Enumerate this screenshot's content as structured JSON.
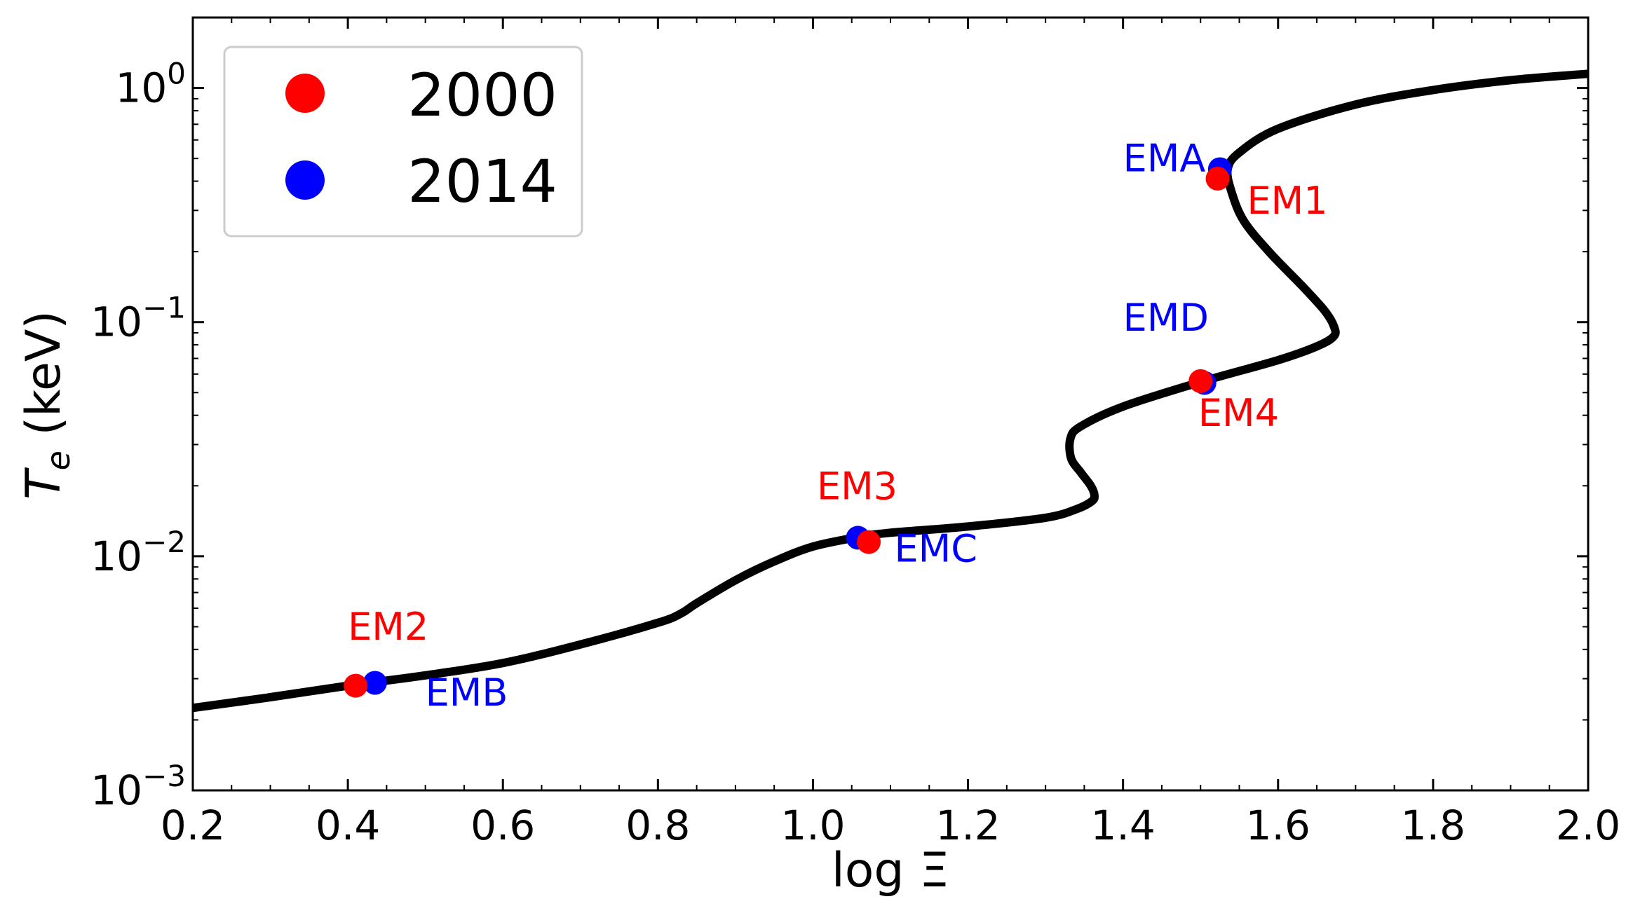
{
  "chart_data": {
    "type": "line",
    "title": "",
    "xlabel": "log Ξ",
    "ylabel_main": "T",
    "ylabel_sub": "e",
    "ylabel_unit": " (keV)",
    "xlim": [
      0.2,
      2.0
    ],
    "ylim": [
      0.001,
      2.0
    ],
    "yscale": "log",
    "x_ticks": [
      {
        "value": 0.2,
        "label": "0.2"
      },
      {
        "value": 0.4,
        "label": "0.4"
      },
      {
        "value": 0.6,
        "label": "0.6"
      },
      {
        "value": 0.8,
        "label": "0.8"
      },
      {
        "value": 1.0,
        "label": "1.0"
      },
      {
        "value": 1.2,
        "label": "1.2"
      },
      {
        "value": 1.4,
        "label": "1.4"
      },
      {
        "value": 1.6,
        "label": "1.6"
      },
      {
        "value": 1.8,
        "label": "1.8"
      },
      {
        "value": 2.0,
        "label": "2.0"
      }
    ],
    "y_ticks": [
      {
        "value": 0.001,
        "base": "10",
        "exp": "−3"
      },
      {
        "value": 0.01,
        "base": "10",
        "exp": "−2"
      },
      {
        "value": 0.1,
        "base": "10",
        "exp": "−1"
      },
      {
        "value": 1.0,
        "base": "10",
        "exp": "0"
      }
    ],
    "curve": {
      "name": "S-curve",
      "color": "#000000",
      "x": [
        0.2,
        0.3,
        0.4,
        0.5,
        0.6,
        0.7,
        0.8,
        0.83,
        0.85,
        0.9,
        0.95,
        1.0,
        1.06,
        1.1,
        1.2,
        1.3,
        1.34,
        1.36,
        1.363,
        1.358,
        1.345,
        1.333,
        1.332,
        1.345,
        1.4,
        1.5,
        1.6,
        1.65,
        1.672,
        1.672,
        1.66,
        1.63,
        1.59,
        1.556,
        1.54,
        1.535,
        1.55,
        1.6,
        1.7,
        1.8,
        1.9,
        2.0
      ],
      "y": [
        0.00225,
        0.0025,
        0.0028,
        0.0031,
        0.0035,
        0.0042,
        0.0052,
        0.0057,
        0.0063,
        0.0079,
        0.0095,
        0.011,
        0.0121,
        0.0126,
        0.0134,
        0.0146,
        0.0159,
        0.0172,
        0.0183,
        0.0201,
        0.0229,
        0.0262,
        0.0317,
        0.0358,
        0.0436,
        0.0555,
        0.0688,
        0.0788,
        0.087,
        0.096,
        0.112,
        0.144,
        0.197,
        0.27,
        0.36,
        0.45,
        0.53,
        0.67,
        0.85,
        0.98,
        1.08,
        1.15
      ]
    },
    "series": [
      {
        "name": "2000",
        "color": "#ff0000",
        "points": [
          {
            "label": "EM1",
            "x": 1.522,
            "y": 0.41
          },
          {
            "label": "EM2",
            "x": 0.41,
            "y": 0.0028
          },
          {
            "label": "EM3",
            "x": 1.072,
            "y": 0.0115
          },
          {
            "label": "EM4",
            "x": 1.5,
            "y": 0.056
          }
        ]
      },
      {
        "name": "2014",
        "color": "#0000ff",
        "points": [
          {
            "label": "EMA",
            "x": 1.525,
            "y": 0.45
          },
          {
            "label": "EMB",
            "x": 0.435,
            "y": 0.00288
          },
          {
            "label": "EMC",
            "x": 1.058,
            "y": 0.012
          },
          {
            "label": "EMD",
            "x": 1.505,
            "y": 0.055
          }
        ]
      }
    ],
    "legend": {
      "position": "top-left",
      "entries": [
        {
          "label": "2000",
          "color": "#ff0000"
        },
        {
          "label": "2014",
          "color": "#0000ff"
        }
      ]
    },
    "annotations": [
      {
        "text": "EMA",
        "color": "#0000ff",
        "x": 1.4,
        "y": 0.44
      },
      {
        "text": "EM1",
        "color": "#ff0000",
        "x": 1.56,
        "y": 0.29
      },
      {
        "text": "EMD",
        "color": "#0000ff",
        "x": 1.4,
        "y": 0.092
      },
      {
        "text": "EM4",
        "color": "#ff0000",
        "x": 1.497,
        "y": 0.036
      },
      {
        "text": "EM3",
        "color": "#ff0000",
        "x": 1.005,
        "y": 0.0175
      },
      {
        "text": "EMC",
        "color": "#0000ff",
        "x": 1.105,
        "y": 0.0095
      },
      {
        "text": "EM2",
        "color": "#ff0000",
        "x": 0.4,
        "y": 0.0044
      },
      {
        "text": "EMB",
        "color": "#0000ff",
        "x": 0.5,
        "y": 0.0023
      }
    ]
  }
}
